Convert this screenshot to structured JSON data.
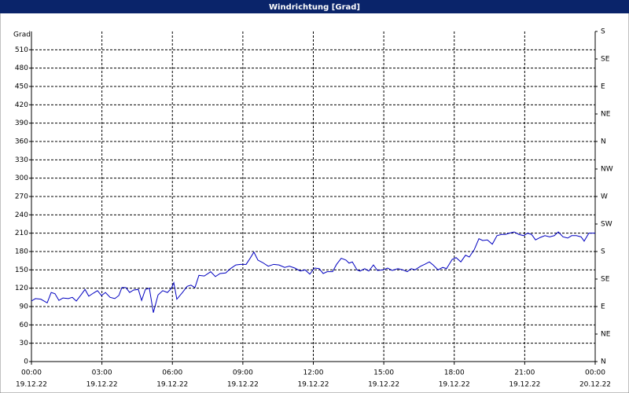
{
  "window_title": "Windrichtung [Grad]",
  "chart_data": {
    "type": "line",
    "ylabel": "Grad",
    "xlim": [
      0,
      24
    ],
    "ylim": [
      0,
      540
    ],
    "y2lim": [
      0,
      540
    ],
    "xticks": [
      {
        "value": 0,
        "label": "00:00",
        "date": "19.12.22"
      },
      {
        "value": 3,
        "label": "03:00",
        "date": "19.12.22"
      },
      {
        "value": 6,
        "label": "06:00",
        "date": "19.12.22"
      },
      {
        "value": 9,
        "label": "09:00",
        "date": "19.12.22"
      },
      {
        "value": 12,
        "label": "12:00",
        "date": "19.12.22"
      },
      {
        "value": 15,
        "label": "15:00",
        "date": "19.12.22"
      },
      {
        "value": 18,
        "label": "18:00",
        "date": "19.12.22"
      },
      {
        "value": 21,
        "label": "21:00",
        "date": "19.12.22"
      },
      {
        "value": 24,
        "label": "00:00",
        "date": "20.12.22"
      }
    ],
    "yticks": [
      0,
      30,
      60,
      90,
      120,
      150,
      180,
      210,
      240,
      270,
      300,
      330,
      360,
      390,
      420,
      450,
      480,
      510
    ],
    "y2ticks": [
      {
        "value": 0,
        "label": "N"
      },
      {
        "value": 45,
        "label": "NE"
      },
      {
        "value": 90,
        "label": "E"
      },
      {
        "value": 135,
        "label": "SE"
      },
      {
        "value": 180,
        "label": "S"
      },
      {
        "value": 225,
        "label": "SW"
      },
      {
        "value": 270,
        "label": "W"
      },
      {
        "value": 315,
        "label": "NW"
      },
      {
        "value": 360,
        "label": "N"
      },
      {
        "value": 405,
        "label": "NE"
      },
      {
        "value": 450,
        "label": "E"
      },
      {
        "value": 495,
        "label": "SE"
      },
      {
        "value": 540,
        "label": "S"
      }
    ],
    "grid": true,
    "x": [
      0,
      0.17,
      0.4,
      0.67,
      0.84,
      1,
      1.17,
      1.34,
      1.57,
      1.74,
      1.91,
      2.11,
      2.28,
      2.44,
      2.64,
      2.81,
      2.98,
      3.15,
      3.35,
      3.55,
      3.72,
      3.85,
      4.02,
      4.18,
      4.35,
      4.55,
      4.69,
      4.85,
      5.02,
      5.19,
      5.39,
      5.59,
      5.79,
      5.96,
      6.06,
      6.19,
      6.43,
      6.63,
      6.79,
      6.96,
      7.13,
      7.36,
      7.63,
      7.83,
      8.03,
      8.27,
      8.47,
      8.7,
      8.9,
      9.14,
      9.31,
      9.47,
      9.64,
      9.84,
      10.08,
      10.31,
      10.54,
      10.78,
      10.98,
      11.21,
      11.45,
      11.65,
      11.85,
      12.05,
      12.25,
      12.42,
      12.59,
      12.82,
      12.99,
      13.19,
      13.39,
      13.52,
      13.66,
      13.86,
      13.99,
      14.19,
      14.36,
      14.56,
      14.73,
      14.96,
      15.16,
      15.36,
      15.6,
      15.8,
      16,
      16.17,
      16.33,
      16.57,
      16.74,
      16.94,
      17.1,
      17.31,
      17.51,
      17.67,
      17.91,
      18.08,
      18.28,
      18.48,
      18.64,
      18.85,
      19.05,
      19.21,
      19.41,
      19.62,
      19.82,
      20.02,
      20.18,
      20.35,
      20.55,
      20.75,
      20.95,
      21.12,
      21.29,
      21.46,
      21.66,
      21.86,
      22.06,
      22.26,
      22.43,
      22.63,
      22.83,
      23,
      23.2,
      23.4,
      23.53,
      23.73,
      24
    ],
    "series": [
      {
        "color": "#0000c0",
        "values": [
          99,
          103,
          102,
          96,
          113,
          111,
          100,
          104,
          103,
          105,
          99,
          109,
          118,
          107,
          112,
          116,
          108,
          113,
          105,
          103,
          108,
          121,
          121,
          113,
          117,
          118,
          100,
          118,
          120,
          80,
          109,
          116,
          113,
          120,
          129,
          102,
          113,
          123,
          125,
          121,
          141,
          140,
          147,
          139,
          144,
          145,
          152,
          158,
          159,
          159,
          169,
          179,
          166,
          162,
          156,
          159,
          158,
          154,
          156,
          153,
          148,
          150,
          143,
          153,
          152,
          144,
          147,
          147,
          159,
          169,
          166,
          161,
          163,
          150,
          148,
          152,
          148,
          158,
          149,
          150,
          153,
          149,
          152,
          150,
          147,
          152,
          150,
          156,
          159,
          163,
          158,
          150,
          154,
          152,
          167,
          170,
          163,
          174,
          171,
          183,
          201,
          198,
          199,
          192,
          206,
          208,
          208,
          210,
          212,
          208,
          206,
          210,
          208,
          199,
          203,
          206,
          204,
          206,
          212,
          204,
          202,
          206,
          206,
          204,
          197,
          210,
          210
        ]
      }
    ]
  }
}
